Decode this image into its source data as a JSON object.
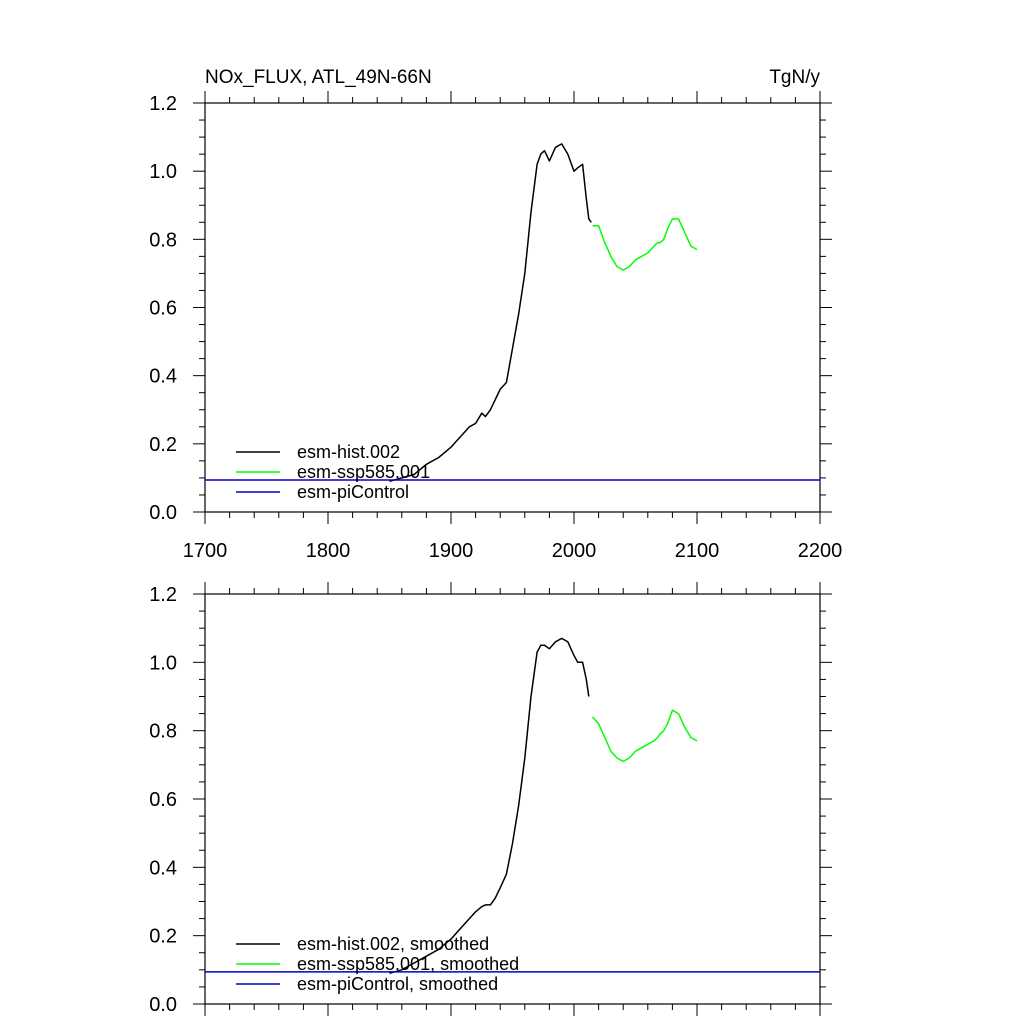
{
  "chart_data": [
    {
      "type": "line",
      "title": "NOx_FLUX, ATL_49N-66N",
      "units": "TgN/y",
      "xlim": [
        1700,
        2200
      ],
      "ylim": [
        0.0,
        1.2
      ],
      "xticks": [
        1700,
        1800,
        1900,
        2000,
        2100,
        2200
      ],
      "yticks": [
        0.0,
        0.2,
        0.4,
        0.6,
        0.8,
        1.0,
        1.2
      ],
      "xtick_labels": [
        "1700",
        "1800",
        "1900",
        "2000",
        "2100",
        "2200"
      ],
      "ytick_labels": [
        "0.0",
        "0.2",
        "0.4",
        "0.6",
        "0.8",
        "1.0",
        "1.2"
      ],
      "series": [
        {
          "name": "esm-hist.002",
          "color": "#000000",
          "x": [
            1850,
            1860,
            1870,
            1880,
            1890,
            1900,
            1905,
            1910,
            1915,
            1920,
            1925,
            1928,
            1932,
            1936,
            1940,
            1945,
            1950,
            1955,
            1960,
            1965,
            1970,
            1973,
            1976,
            1980,
            1985,
            1990,
            1995,
            2000,
            2003,
            2007,
            2010,
            2012,
            2014
          ],
          "y": [
            0.09,
            0.1,
            0.11,
            0.14,
            0.16,
            0.19,
            0.21,
            0.23,
            0.25,
            0.26,
            0.29,
            0.28,
            0.3,
            0.33,
            0.36,
            0.38,
            0.48,
            0.58,
            0.7,
            0.88,
            1.02,
            1.05,
            1.06,
            1.03,
            1.07,
            1.08,
            1.05,
            1.0,
            1.01,
            1.02,
            0.92,
            0.86,
            0.85
          ]
        },
        {
          "name": "esm-ssp585.001",
          "color": "#00ff00",
          "x": [
            2015,
            2020,
            2025,
            2030,
            2035,
            2040,
            2045,
            2050,
            2055,
            2060,
            2065,
            2068,
            2070,
            2073,
            2076,
            2080,
            2085,
            2090,
            2095,
            2100
          ],
          "y": [
            0.84,
            0.84,
            0.79,
            0.75,
            0.72,
            0.71,
            0.72,
            0.74,
            0.75,
            0.76,
            0.78,
            0.79,
            0.79,
            0.8,
            0.83,
            0.86,
            0.86,
            0.82,
            0.78,
            0.77
          ]
        },
        {
          "name": "esm-piControl",
          "color": "#0000cc",
          "x": [
            1700,
            2200
          ],
          "y": [
            0.094,
            0.094
          ]
        }
      ],
      "legend_position": "bottom-left"
    },
    {
      "type": "line",
      "xlim": [
        1700,
        2200
      ],
      "ylim": [
        0.0,
        1.2
      ],
      "xticks": [
        1700,
        1800,
        1900,
        2000,
        2100,
        2200
      ],
      "yticks": [
        0.0,
        0.2,
        0.4,
        0.6,
        0.8,
        1.0,
        1.2
      ],
      "ytick_labels": [
        "0.0",
        "0.2",
        "0.4",
        "0.6",
        "0.8",
        "1.0",
        "1.2"
      ],
      "series": [
        {
          "name": "esm-hist.002, smoothed",
          "color": "#000000",
          "x": [
            1850,
            1860,
            1870,
            1880,
            1890,
            1900,
            1905,
            1910,
            1915,
            1920,
            1925,
            1928,
            1932,
            1936,
            1940,
            1945,
            1950,
            1955,
            1960,
            1965,
            1970,
            1973,
            1976,
            1980,
            1985,
            1990,
            1995,
            2000,
            2003,
            2007,
            2010,
            2012
          ],
          "y": [
            0.09,
            0.1,
            0.12,
            0.14,
            0.16,
            0.19,
            0.21,
            0.23,
            0.25,
            0.27,
            0.285,
            0.29,
            0.29,
            0.31,
            0.34,
            0.38,
            0.47,
            0.58,
            0.72,
            0.9,
            1.03,
            1.05,
            1.05,
            1.04,
            1.06,
            1.07,
            1.06,
            1.02,
            1.0,
            1.0,
            0.95,
            0.9
          ]
        },
        {
          "name": "esm-ssp585.001, smoothed",
          "color": "#00ff00",
          "x": [
            2015,
            2020,
            2025,
            2030,
            2035,
            2040,
            2045,
            2050,
            2055,
            2060,
            2065,
            2068,
            2070,
            2073,
            2076,
            2080,
            2085,
            2090,
            2095,
            2100
          ],
          "y": [
            0.84,
            0.82,
            0.78,
            0.74,
            0.72,
            0.71,
            0.72,
            0.74,
            0.75,
            0.76,
            0.77,
            0.78,
            0.79,
            0.8,
            0.82,
            0.86,
            0.85,
            0.81,
            0.78,
            0.77
          ]
        },
        {
          "name": "esm-piControl, smoothed",
          "color": "#0000cc",
          "x": [
            1700,
            2200
          ],
          "y": [
            0.094,
            0.094
          ]
        }
      ],
      "legend_position": "bottom-left"
    }
  ]
}
